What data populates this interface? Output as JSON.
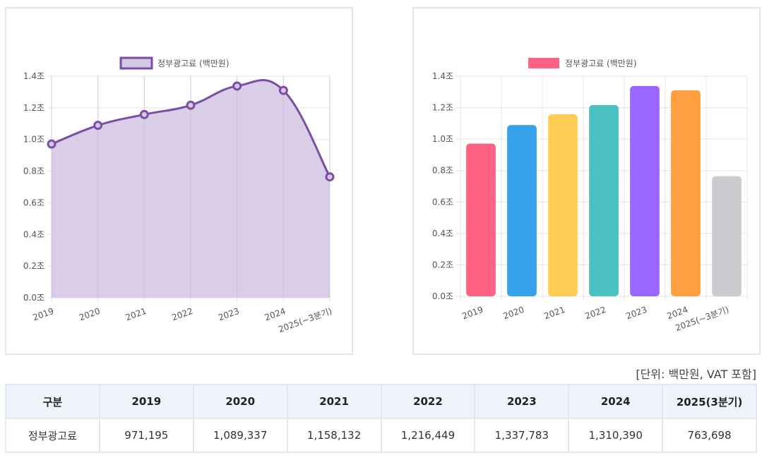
{
  "chart_data": [
    {
      "type": "area",
      "legend": "정부광고료 (백만원)",
      "categories": [
        "2019",
        "2020",
        "2021",
        "2022",
        "2023",
        "2024",
        "2025(~3분기)"
      ],
      "values": [
        0.971195,
        1.089337,
        1.158132,
        1.216449,
        1.337783,
        1.31039,
        0.763698
      ],
      "y_ticks": [
        "0.0조",
        "0.2조",
        "0.4조",
        "0.6조",
        "0.8조",
        "1.0조",
        "1.2조",
        "1.4조"
      ],
      "ylim": [
        0,
        1.4
      ],
      "line_color": "#7b4ea6",
      "fill_color": "#d5c8e4",
      "grid": true
    },
    {
      "type": "bar",
      "legend": "정부광고료 (백만원)",
      "legend_color": "#ff6384",
      "categories": [
        "2019",
        "2020",
        "2021",
        "2022",
        "2023",
        "2024",
        "2025(~3분기)"
      ],
      "values": [
        0.971195,
        1.089337,
        1.158132,
        1.216449,
        1.337783,
        1.31039,
        0.763698
      ],
      "y_ticks": [
        "0.0조",
        "0.2조",
        "0.4조",
        "0.6조",
        "0.8조",
        "1.0조",
        "1.2조",
        "1.4조"
      ],
      "ylim": [
        0,
        1.4
      ],
      "colors": [
        "#ff6384",
        "#36a2eb",
        "#ffcd56",
        "#4bc0c0",
        "#9966ff",
        "#ff9f40",
        "#c9cbcf"
      ],
      "grid": true
    }
  ],
  "unit_note": "[단위: 백만원, VAT 포함]",
  "table": {
    "headers": [
      "구분",
      "2019",
      "2020",
      "2021",
      "2022",
      "2023",
      "2024",
      "2025(3분기)"
    ],
    "row": [
      "정부광고료",
      "971,195",
      "1,089,337",
      "1,158,132",
      "1,216,449",
      "1,337,783",
      "1,310,390",
      "763,698"
    ]
  }
}
